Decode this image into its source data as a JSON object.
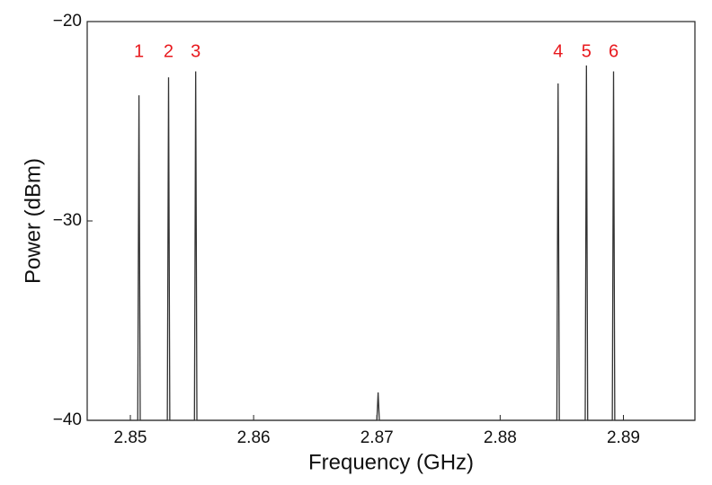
{
  "chart_data": {
    "type": "line",
    "xlabel": "Frequency (GHz)",
    "ylabel": "Power (dBm)",
    "xlim": [
      2.8465,
      2.8958
    ],
    "ylim": [
      -40,
      -20
    ],
    "xticks": [
      2.85,
      2.86,
      2.87,
      2.88,
      2.89
    ],
    "yticks": [
      {
        "value": -40,
        "label": "−40"
      },
      {
        "value": -30,
        "label": "−30"
      },
      {
        "value": -20,
        "label": "−20"
      }
    ],
    "series": [
      {
        "color": "#333333",
        "x": [
          2.8465,
          2.8506,
          2.8507,
          2.8508,
          2.853,
          2.8531,
          2.8532,
          2.8552,
          2.8553,
          2.8554,
          2.87,
          2.8701,
          2.8702,
          2.8846,
          2.8847,
          2.8848,
          2.8869,
          2.887,
          2.8871,
          2.8891,
          2.8892,
          2.8893,
          2.8958
        ],
        "values": [
          -40,
          -40,
          -23.7,
          -40,
          -40,
          -22.8,
          -40,
          -40,
          -22.5,
          -40,
          -40,
          -38.6,
          -40,
          -40,
          -23.1,
          -40,
          -40,
          -22.2,
          -40,
          -40,
          -22.5,
          -40,
          -40
        ]
      }
    ],
    "annotations": [
      {
        "text": "1",
        "x": 2.8507
      },
      {
        "text": "2",
        "x": 2.8531
      },
      {
        "text": "3",
        "x": 2.8553
      },
      {
        "text": "4",
        "x": 2.8847
      },
      {
        "text": "5",
        "x": 2.887
      },
      {
        "text": "6",
        "x": 2.8892
      }
    ]
  }
}
